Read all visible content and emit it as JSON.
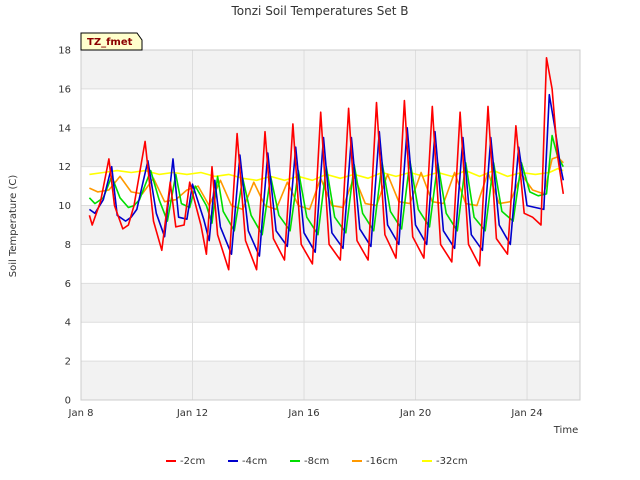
{
  "chart_data": {
    "type": "line",
    "title": "Tonzi Soil Temperatures Set B",
    "xlabel": "Time",
    "ylabel": "Soil Temperature (C)",
    "badge": "TZ_fmet",
    "xlim": [
      8,
      25.9
    ],
    "ylim": [
      0,
      18
    ],
    "x_ticks": [
      {
        "value": 8,
        "label": "Jan 8"
      },
      {
        "value": 12,
        "label": "Jan 12"
      },
      {
        "value": 16,
        "label": "Jan 16"
      },
      {
        "value": 20,
        "label": "Jan 20"
      },
      {
        "value": 24,
        "label": "Jan 24"
      }
    ],
    "y_ticks": [
      0,
      2,
      4,
      6,
      8,
      10,
      12,
      14,
      16,
      18
    ],
    "grid": true,
    "legend_position": "bottom",
    "series": [
      {
        "name": "-2cm",
        "color": "#ff0000",
        "x": [
          8.3,
          8.4,
          8.7,
          9.0,
          9.2,
          9.5,
          9.7,
          9.9,
          10.3,
          10.6,
          10.9,
          11.2,
          11.4,
          11.7,
          11.9,
          12.3,
          12.5,
          12.7,
          12.9,
          13.3,
          13.6,
          13.9,
          14.3,
          14.6,
          14.9,
          15.3,
          15.6,
          15.9,
          16.3,
          16.6,
          16.9,
          17.3,
          17.6,
          17.9,
          18.3,
          18.6,
          18.9,
          19.3,
          19.6,
          19.9,
          20.3,
          20.6,
          20.9,
          21.3,
          21.6,
          21.9,
          22.3,
          22.6,
          22.9,
          23.3,
          23.6,
          23.9,
          24.2,
          24.5,
          24.7,
          24.9,
          25.1,
          25.3
        ],
        "y": [
          9.5,
          9.0,
          10.2,
          12.4,
          10.0,
          8.8,
          9.0,
          10.0,
          13.3,
          9.2,
          7.7,
          11.2,
          8.9,
          9.0,
          11.2,
          9.0,
          7.5,
          12.0,
          8.5,
          6.7,
          13.7,
          8.2,
          6.7,
          13.8,
          8.3,
          7.2,
          14.2,
          8.0,
          7.0,
          14.8,
          8.0,
          7.2,
          15.0,
          8.2,
          7.2,
          15.3,
          8.5,
          7.3,
          15.4,
          8.4,
          7.3,
          15.1,
          8.0,
          7.1,
          14.8,
          8.0,
          6.9,
          15.1,
          8.3,
          7.5,
          14.1,
          9.6,
          9.4,
          9.0,
          17.6,
          16.0,
          12.5,
          10.6
        ]
      },
      {
        "name": "-4cm",
        "color": "#0000cc",
        "x": [
          8.3,
          8.5,
          8.8,
          9.1,
          9.3,
          9.6,
          9.8,
          10.0,
          10.4,
          10.7,
          11.0,
          11.3,
          11.5,
          11.8,
          12.0,
          12.4,
          12.6,
          12.8,
          13.0,
          13.4,
          13.7,
          14.0,
          14.4,
          14.7,
          15.0,
          15.4,
          15.7,
          16.0,
          16.4,
          16.7,
          17.0,
          17.4,
          17.7,
          18.0,
          18.4,
          18.7,
          19.0,
          19.4,
          19.7,
          20.0,
          20.4,
          20.7,
          21.0,
          21.4,
          21.7,
          22.0,
          22.4,
          22.7,
          23.0,
          23.4,
          23.7,
          24.0,
          24.3,
          24.6,
          24.8,
          25.0,
          25.2,
          25.3
        ],
        "y": [
          9.8,
          9.6,
          10.3,
          12.0,
          9.5,
          9.2,
          9.4,
          9.8,
          12.3,
          9.6,
          8.4,
          12.4,
          9.4,
          9.3,
          11.1,
          9.3,
          8.2,
          11.3,
          8.9,
          7.5,
          12.6,
          8.7,
          7.4,
          12.7,
          8.7,
          7.9,
          13.0,
          8.6,
          7.6,
          13.5,
          8.6,
          7.8,
          13.5,
          8.8,
          7.9,
          13.8,
          9.0,
          8.0,
          14.0,
          9.0,
          8.0,
          13.8,
          8.7,
          7.8,
          13.5,
          8.5,
          7.7,
          13.5,
          9.0,
          8.0,
          13.0,
          10.0,
          9.9,
          9.8,
          15.7,
          14.0,
          12.0,
          11.3
        ]
      },
      {
        "name": "-8cm",
        "color": "#00dd00",
        "x": [
          8.3,
          8.5,
          8.8,
          9.1,
          9.4,
          9.7,
          9.9,
          10.1,
          10.5,
          10.8,
          11.1,
          11.4,
          11.6,
          11.9,
          12.1,
          12.5,
          12.7,
          12.9,
          13.1,
          13.5,
          13.8,
          14.1,
          14.5,
          14.8,
          15.1,
          15.5,
          15.8,
          16.1,
          16.5,
          16.8,
          17.1,
          17.5,
          17.8,
          18.1,
          18.5,
          18.8,
          19.1,
          19.5,
          19.8,
          20.1,
          20.5,
          20.8,
          21.1,
          21.5,
          21.8,
          22.1,
          22.5,
          22.8,
          23.1,
          23.5,
          23.8,
          24.1,
          24.4,
          24.7,
          24.9,
          25.1,
          25.3
        ],
        "y": [
          10.4,
          10.1,
          10.4,
          11.5,
          10.4,
          9.9,
          10.0,
          10.3,
          11.8,
          10.3,
          9.2,
          11.6,
          10.1,
          9.9,
          11.0,
          10.0,
          9.1,
          11.5,
          9.7,
          8.7,
          11.4,
          9.5,
          8.5,
          11.5,
          9.5,
          8.7,
          11.8,
          9.4,
          8.5,
          12.0,
          9.4,
          8.6,
          12.1,
          9.6,
          8.7,
          12.2,
          9.7,
          8.8,
          12.3,
          9.8,
          8.9,
          12.2,
          9.6,
          8.7,
          12.2,
          9.4,
          8.7,
          12.2,
          9.7,
          9.2,
          12.2,
          10.7,
          10.5,
          10.6,
          13.6,
          12.5,
          12.0
        ]
      },
      {
        "name": "-16cm",
        "color": "#ff9900",
        "x": [
          8.3,
          8.6,
          9.0,
          9.4,
          9.8,
          10.2,
          10.6,
          11.0,
          11.4,
          11.8,
          12.2,
          12.6,
          13.0,
          13.4,
          13.8,
          14.2,
          14.6,
          15.0,
          15.4,
          15.8,
          16.2,
          16.6,
          17.0,
          17.4,
          17.8,
          18.2,
          18.6,
          19.0,
          19.4,
          19.8,
          20.2,
          20.6,
          21.0,
          21.4,
          21.8,
          22.2,
          22.6,
          23.0,
          23.4,
          23.8,
          24.2,
          24.6,
          24.9,
          25.1,
          25.3
        ],
        "y": [
          10.9,
          10.7,
          10.8,
          11.5,
          10.7,
          10.6,
          11.4,
          10.2,
          10.3,
          10.8,
          11.0,
          10.0,
          11.3,
          10.0,
          9.8,
          11.2,
          10.0,
          9.8,
          11.2,
          10.0,
          9.8,
          11.4,
          10.0,
          9.9,
          11.5,
          10.1,
          10.0,
          11.6,
          10.2,
          10.1,
          11.7,
          10.2,
          10.1,
          11.7,
          10.1,
          10.0,
          11.7,
          10.1,
          10.2,
          11.6,
          10.8,
          10.6,
          12.4,
          12.5,
          12.2
        ]
      },
      {
        "name": "-32cm",
        "color": "#ffff00",
        "x": [
          8.3,
          8.8,
          9.3,
          9.8,
          10.3,
          10.8,
          11.3,
          11.8,
          12.3,
          12.8,
          13.3,
          13.8,
          14.3,
          14.8,
          15.3,
          15.8,
          16.3,
          16.8,
          17.3,
          17.8,
          18.3,
          18.8,
          19.3,
          19.8,
          20.3,
          20.8,
          21.3,
          21.8,
          22.3,
          22.8,
          23.3,
          23.8,
          24.3,
          24.8,
          25.1,
          25.3
        ],
        "y": [
          11.6,
          11.7,
          11.8,
          11.7,
          11.8,
          11.6,
          11.7,
          11.6,
          11.7,
          11.5,
          11.6,
          11.4,
          11.3,
          11.5,
          11.3,
          11.5,
          11.3,
          11.6,
          11.4,
          11.6,
          11.4,
          11.7,
          11.5,
          11.7,
          11.5,
          11.7,
          11.5,
          11.8,
          11.5,
          11.8,
          11.5,
          11.7,
          11.6,
          11.7,
          11.9,
          11.8
        ]
      }
    ]
  }
}
